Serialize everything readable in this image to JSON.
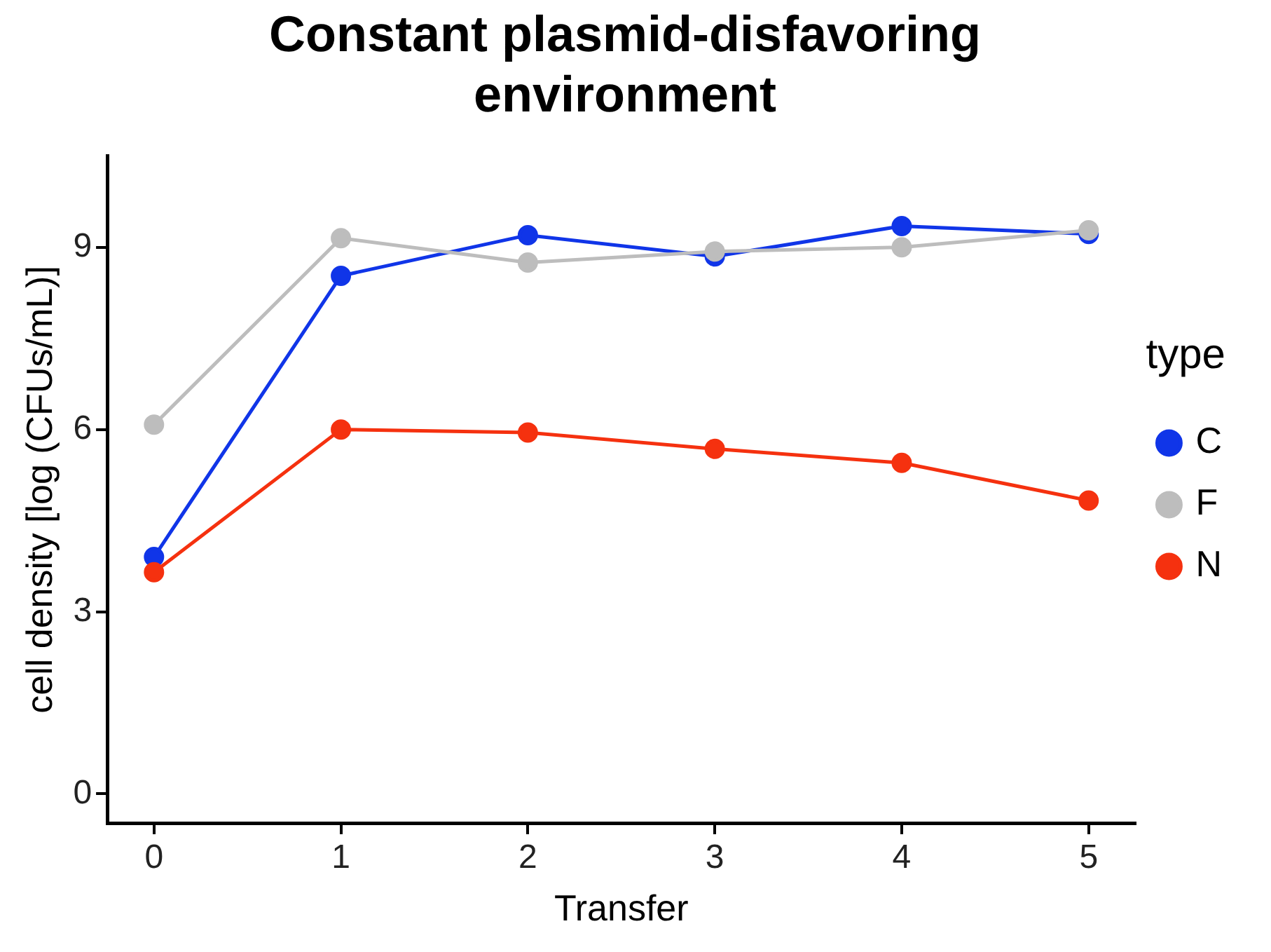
{
  "chart_data": {
    "type": "line",
    "title": "Constant plasmid-disfavoring environment",
    "xlabel": "Transfer",
    "ylabel": "cell density [log (CFUs/mL)]",
    "legend_title": "type",
    "x": [
      0,
      1,
      2,
      3,
      4,
      5
    ],
    "series": [
      {
        "name": "C",
        "color": "#1035e8",
        "values": [
          3.9,
          8.53,
          9.2,
          8.85,
          9.35,
          9.22
        ]
      },
      {
        "name": "F",
        "color": "#bdbdbd",
        "values": [
          6.08,
          9.15,
          8.75,
          8.93,
          9.0,
          9.28
        ]
      },
      {
        "name": "N",
        "color": "#f5310f",
        "values": [
          3.65,
          6.0,
          5.95,
          5.68,
          5.45,
          4.83
        ]
      }
    ],
    "xlim": [
      -0.25,
      5.25
    ],
    "xticks": [
      0,
      1,
      2,
      3,
      4,
      5
    ],
    "ylim": [
      -0.48,
      10.5
    ],
    "yticks": [
      0,
      3,
      6,
      9
    ],
    "grid": false,
    "legend": "right",
    "marker": "circle",
    "line_style": "solid"
  }
}
